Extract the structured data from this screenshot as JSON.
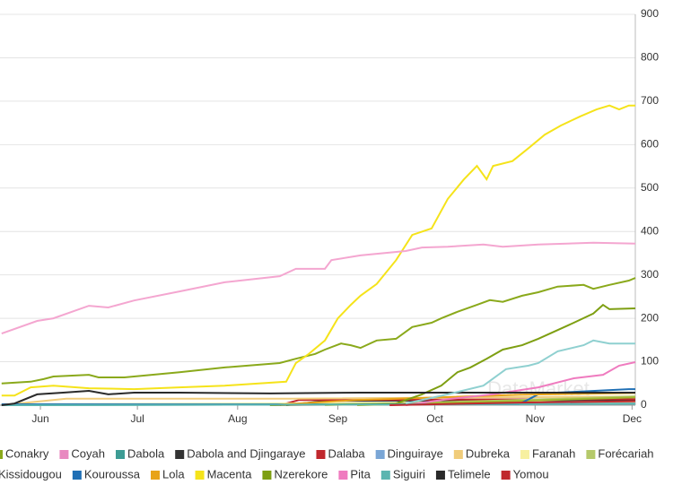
{
  "chart_data": {
    "type": "line",
    "watermark": "DataMarket",
    "grid": true,
    "xlim": [
      139.5,
      336
    ],
    "xticks": [
      {
        "value": 152,
        "label": "Jun"
      },
      {
        "value": 182,
        "label": "Jul"
      },
      {
        "value": 213,
        "label": "Aug"
      },
      {
        "value": 244,
        "label": "Sep"
      },
      {
        "value": 274,
        "label": "Oct"
      },
      {
        "value": 305,
        "label": "Nov"
      },
      {
        "value": 335,
        "label": "Dec"
      }
    ],
    "ylim": [
      0,
      900
    ],
    "yticks": [
      0,
      100,
      200,
      300,
      400,
      500,
      600,
      700,
      800,
      900
    ],
    "series": [
      {
        "name": "Conakry",
        "color": "#8aa91b",
        "x": [
          140,
          149,
          153,
          156,
          167,
          170,
          178,
          195,
          209,
          226,
          231,
          237,
          240,
          245,
          248,
          251,
          256,
          262,
          267,
          273,
          276,
          281,
          287,
          291,
          295,
          301,
          306,
          312,
          320,
          323,
          328,
          334,
          336
        ],
        "values": [
          50,
          54,
          60,
          66,
          70,
          64,
          64,
          76,
          87,
          97,
          107,
          118,
          128,
          142,
          138,
          132,
          149,
          153,
          180,
          190,
          200,
          215,
          231,
          242,
          238,
          252,
          260,
          273,
          277,
          268,
          277,
          287,
          293
        ]
      },
      {
        "name": "Coyah",
        "color": "#e889c0",
        "x": [
          223,
          280,
          336
        ],
        "values": [
          0,
          3,
          6
        ]
      },
      {
        "name": "Dabola",
        "color": "#3d9c94",
        "x": [
          140,
          270,
          336
        ],
        "values": [
          0,
          2,
          5
        ]
      },
      {
        "name": "Dabola and Djingaraye",
        "color": "#333333",
        "x": [
          228,
          240,
          336
        ],
        "values": [
          0,
          10,
          12
        ]
      },
      {
        "name": "Dalaba",
        "color": "#c0282d",
        "x": [
          226,
          232,
          336
        ],
        "values": [
          0,
          12,
          14
        ]
      },
      {
        "name": "Dinguiraye",
        "color": "#7aa6d6",
        "x": [
          140,
          250,
          336
        ],
        "values": [
          1,
          2,
          4
        ]
      },
      {
        "name": "Dubreka",
        "color": "#f0cc7a",
        "x": [
          140,
          160,
          230,
          336
        ],
        "values": [
          0,
          15,
          15,
          20
        ]
      },
      {
        "name": "Faranah",
        "color": "#f7f0a0",
        "x": [
          140,
          270,
          336
        ],
        "values": [
          2,
          5,
          8
        ]
      },
      {
        "name": "Forécariah",
        "color": "#b5c96a",
        "x": [
          240,
          290,
          336
        ],
        "values": [
          0,
          10,
          20
        ]
      },
      {
        "name": "Kissidougou",
        "color": "#a0b830",
        "x": [
          250,
          300,
          336
        ],
        "values": [
          0,
          10,
          18
        ]
      },
      {
        "name": "Kouroussa",
        "color": "#1f6fb5",
        "x": [
          140,
          300,
          306,
          312,
          334,
          336
        ],
        "values": [
          2,
          2,
          25,
          29,
          37,
          37
        ]
      },
      {
        "name": "Lola",
        "color": "#e8a317",
        "x": [
          223,
          250,
          300,
          336
        ],
        "values": [
          0,
          12,
          24,
          28
        ]
      },
      {
        "name": "Macenta",
        "color": "#f5e31a",
        "x": [
          140,
          144,
          149,
          156,
          167,
          181,
          195,
          209,
          228,
          231,
          235,
          240,
          244,
          248,
          251,
          256,
          262,
          267,
          273,
          278,
          283,
          287,
          290,
          292,
          298,
          303,
          308,
          313,
          319,
          324,
          328,
          331,
          334,
          336
        ],
        "values": [
          22,
          22,
          41,
          45,
          39,
          37,
          41,
          45,
          54,
          97,
          118,
          149,
          200,
          231,
          252,
          279,
          334,
          392,
          407,
          475,
          520,
          551,
          520,
          551,
          562,
          592,
          623,
          644,
          665,
          681,
          690,
          681,
          690,
          690
        ]
      },
      {
        "name": "Nzerekore",
        "color": "#7e9f12",
        "x": [
          223,
          262,
          270,
          276,
          281,
          285,
          290,
          295,
          301,
          306,
          312,
          317,
          323,
          326,
          328,
          336
        ],
        "values": [
          0,
          4,
          25,
          45,
          76,
          87,
          107,
          128,
          138,
          153,
          173,
          190,
          211,
          231,
          221,
          223
        ]
      },
      {
        "name": "Pita",
        "color": "#ef7bbf",
        "x": [
          265,
          278,
          292,
          306,
          317,
          326,
          331,
          336
        ],
        "values": [
          0,
          14,
          25,
          41,
          62,
          70,
          91,
          99
        ]
      },
      {
        "name": "Siguiri",
        "color": "#5bb5b0",
        "x": [
          140,
          280,
          336
        ],
        "values": [
          0,
          2,
          3
        ]
      },
      {
        "name": "Telimele",
        "color": "#2a2a2a",
        "x": [
          140,
          144,
          151,
          159,
          167,
          173,
          181,
          195,
          223,
          251,
          278,
          336
        ],
        "values": [
          0,
          4,
          25,
          29,
          33,
          25,
          29,
          29,
          27,
          29,
          29,
          29
        ]
      },
      {
        "name": "Yomou",
        "color": "#c0282d",
        "x": [
          260,
          300,
          336
        ],
        "values": [
          0,
          6,
          9
        ]
      },
      {
        "color": "#f4a6d0",
        "x": [
          140,
          151,
          156,
          167,
          173,
          181,
          195,
          209,
          226,
          231,
          240,
          242,
          251,
          265,
          270,
          278,
          289,
          295,
          306,
          323,
          336
        ],
        "values": [
          165,
          194,
          200,
          229,
          225,
          241,
          262,
          283,
          297,
          314,
          314,
          334,
          345,
          355,
          363,
          365,
          370,
          365,
          370,
          374,
          372
        ]
      },
      {
        "color": "#8fd0d0",
        "x": [
          265,
          278,
          289,
          296,
          303,
          306,
          312,
          320,
          323,
          328,
          336
        ],
        "values": [
          4,
          25,
          45,
          83,
          91,
          97,
          124,
          138,
          149,
          142,
          142
        ]
      }
    ]
  }
}
